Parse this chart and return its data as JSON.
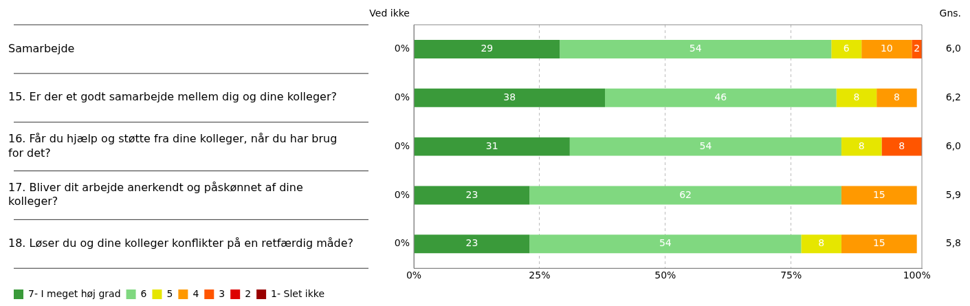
{
  "chart_data": {
    "type": "bar",
    "orientation": "horizontal",
    "stacked": true,
    "categories": [
      "Samarbejde",
      "15. Er der et godt samarbejde mellem dig og dine kolleger?",
      "16. Får du hjælp og støtte fra dine kolleger, når du har brug for det?",
      "17. Bliver dit arbejde anerkendt og påskønnet af dine kolleger?",
      "18. Løser du og dine kolleger konflikter på en retfærdig måde?"
    ],
    "series": [
      {
        "name": "7- I meget høj grad",
        "color": "#3a9a3a",
        "values": [
          29,
          38,
          31,
          23,
          23
        ]
      },
      {
        "name": "6",
        "color": "#80d880",
        "values": [
          54,
          46,
          54,
          62,
          54
        ]
      },
      {
        "name": "5",
        "color": "#e6e600",
        "values": [
          6,
          8,
          8,
          null,
          8
        ]
      },
      {
        "name": "4",
        "color": "#ff9900",
        "values": [
          10,
          8,
          null,
          15,
          15
        ]
      },
      {
        "name": "3",
        "color": "#ff5500",
        "values": [
          2,
          null,
          8,
          null,
          null
        ]
      },
      {
        "name": "2",
        "color": "#dd0000",
        "values": [
          null,
          null,
          null,
          null,
          null
        ]
      },
      {
        "name": "1- Slet ikke",
        "color": "#990000",
        "values": [
          null,
          null,
          null,
          null,
          null
        ]
      }
    ],
    "xlim": [
      0,
      101
    ],
    "xticks": [
      {
        "value": 0,
        "label": "0%"
      },
      {
        "value": 25,
        "label": "25%"
      },
      {
        "value": 50,
        "label": "50%"
      },
      {
        "value": 75,
        "label": "75%"
      },
      {
        "value": 100,
        "label": "100%"
      }
    ],
    "grid": "x",
    "line_style": "dashed",
    "data_labels": true,
    "legend": "bottom",
    "annotations": [
      "Ved ikke",
      "0%",
      "0%",
      "0%",
      "0%",
      "0%",
      "Gns.",
      "6,0",
      "6,2",
      "6,0",
      "5,9",
      "5,8"
    ]
  }
}
